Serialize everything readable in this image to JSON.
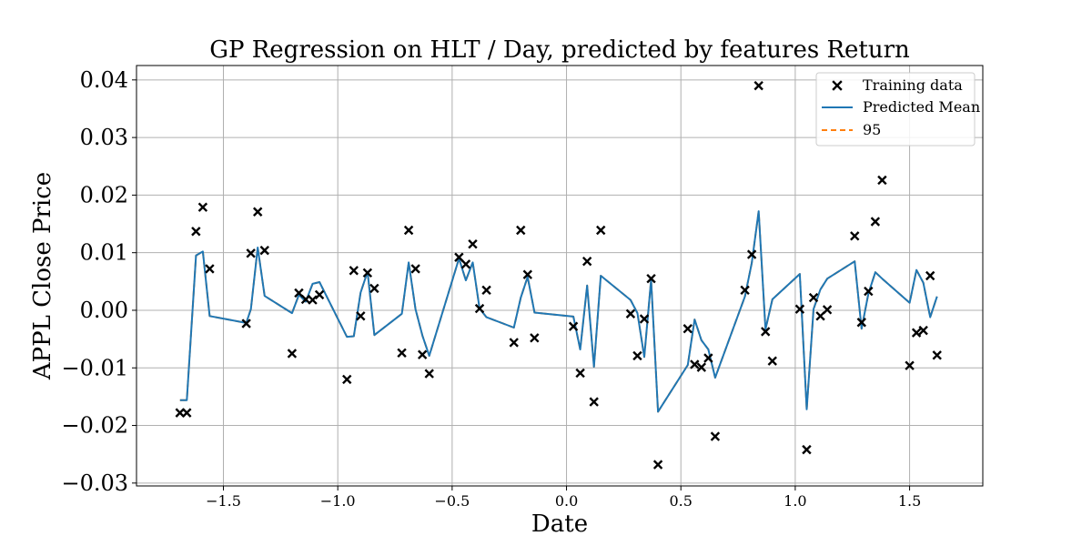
{
  "chart_data": {
    "type": "line",
    "title": "GP Regression on HLT / Day, predicted by features Return",
    "xlabel": "Date",
    "ylabel": "APPL Close Price",
    "xlim": [
      -1.88,
      1.82
    ],
    "ylim": [
      -0.0305,
      0.0425
    ],
    "xticks": [
      -1.5,
      -1.0,
      -0.5,
      0.0,
      0.5,
      1.0,
      1.5
    ],
    "xtick_labels": [
      "−1.5",
      "−1.0",
      "−0.5",
      "0.0",
      "0.5",
      "1.0",
      "1.5"
    ],
    "yticks": [
      -0.03,
      -0.02,
      -0.01,
      0.0,
      0.01,
      0.02,
      0.03,
      0.04
    ],
    "ytick_labels": [
      "−0.03",
      "−0.02",
      "−0.01",
      "0.00",
      "0.01",
      "0.02",
      "0.03",
      "0.04"
    ],
    "grid": true,
    "legend_position": "top-right",
    "colors": {
      "training": "#000000",
      "mean": "#1f77b4",
      "ci": "#ff7f0e",
      "grid": "#b0b0b0",
      "legend_border": "#cccccc"
    },
    "series": [
      {
        "name": "Training data",
        "kind": "scatter",
        "marker": "x",
        "points": [
          [
            -1.69,
            -0.0178
          ],
          [
            -1.66,
            -0.0178
          ],
          [
            -1.62,
            0.0137
          ],
          [
            -1.59,
            0.0179
          ],
          [
            -1.56,
            0.0072
          ],
          [
            -1.4,
            -0.0023
          ],
          [
            -1.38,
            0.0099
          ],
          [
            -1.35,
            0.0171
          ],
          [
            -1.32,
            0.0104
          ],
          [
            -1.2,
            -0.0075
          ],
          [
            -1.17,
            0.003
          ],
          [
            -1.14,
            0.0019
          ],
          [
            -1.11,
            0.0018
          ],
          [
            -1.08,
            0.0027
          ],
          [
            -0.96,
            -0.012
          ],
          [
            -0.93,
            0.0069
          ],
          [
            -0.9,
            -0.001
          ],
          [
            -0.87,
            0.0065
          ],
          [
            -0.84,
            0.0038
          ],
          [
            -0.72,
            -0.0074
          ],
          [
            -0.69,
            0.0139
          ],
          [
            -0.66,
            0.0072
          ],
          [
            -0.63,
            -0.0077
          ],
          [
            -0.6,
            -0.011
          ],
          [
            -0.47,
            0.0092
          ],
          [
            -0.44,
            0.008
          ],
          [
            -0.41,
            0.0115
          ],
          [
            -0.38,
            0.0003
          ],
          [
            -0.35,
            0.0035
          ],
          [
            -0.23,
            -0.0056
          ],
          [
            -0.2,
            0.0139
          ],
          [
            -0.17,
            0.0062
          ],
          [
            -0.14,
            -0.0048
          ],
          [
            0.03,
            -0.0028
          ],
          [
            0.06,
            -0.0109
          ],
          [
            0.09,
            0.0085
          ],
          [
            0.12,
            -0.0159
          ],
          [
            0.15,
            0.0139
          ],
          [
            0.28,
            -0.0006
          ],
          [
            0.31,
            -0.0079
          ],
          [
            0.34,
            -0.0015
          ],
          [
            0.37,
            0.0055
          ],
          [
            0.4,
            -0.0268
          ],
          [
            0.53,
            -0.0032
          ],
          [
            0.56,
            -0.0094
          ],
          [
            0.59,
            -0.0099
          ],
          [
            0.62,
            -0.0083
          ],
          [
            0.65,
            -0.0219
          ],
          [
            0.78,
            0.0035
          ],
          [
            0.81,
            0.0097
          ],
          [
            0.84,
            0.039
          ],
          [
            0.87,
            -0.0037
          ],
          [
            0.9,
            -0.0088
          ],
          [
            1.02,
            0.0002
          ],
          [
            1.05,
            -0.0242
          ],
          [
            1.08,
            0.0022
          ],
          [
            1.11,
            -0.001
          ],
          [
            1.14,
            0.0001
          ],
          [
            1.26,
            0.0129
          ],
          [
            1.29,
            -0.0021
          ],
          [
            1.32,
            0.0033
          ],
          [
            1.35,
            0.0154
          ],
          [
            1.38,
            0.0226
          ],
          [
            1.5,
            -0.0096
          ],
          [
            1.53,
            -0.0039
          ],
          [
            1.56,
            -0.0035
          ],
          [
            1.59,
            0.006
          ],
          [
            1.62,
            -0.0078
          ]
        ]
      },
      {
        "name": "Predicted Mean",
        "kind": "line",
        "points": [
          [
            -1.69,
            -0.0156
          ],
          [
            -1.66,
            -0.0156
          ],
          [
            -1.62,
            0.0095
          ],
          [
            -1.59,
            0.0102
          ],
          [
            -1.56,
            -0.001
          ],
          [
            -1.4,
            -0.0022
          ],
          [
            -1.38,
            0.0002
          ],
          [
            -1.35,
            0.0109
          ],
          [
            -1.32,
            0.0025
          ],
          [
            -1.2,
            -0.0005
          ],
          [
            -1.17,
            0.0027
          ],
          [
            -1.14,
            0.0015
          ],
          [
            -1.11,
            0.0046
          ],
          [
            -1.08,
            0.0049
          ],
          [
            -0.96,
            -0.0046
          ],
          [
            -0.93,
            -0.0045
          ],
          [
            -0.9,
            0.0031
          ],
          [
            -0.87,
            0.0067
          ],
          [
            -0.84,
            -0.0043
          ],
          [
            -0.72,
            -0.0006
          ],
          [
            -0.69,
            0.0083
          ],
          [
            -0.66,
            0.0002
          ],
          [
            -0.63,
            -0.0044
          ],
          [
            -0.6,
            -0.0079
          ],
          [
            -0.47,
            0.009
          ],
          [
            -0.44,
            0.0052
          ],
          [
            -0.41,
            0.0083
          ],
          [
            -0.38,
            0.0003
          ],
          [
            -0.35,
            -0.0012
          ],
          [
            -0.23,
            -0.003
          ],
          [
            -0.2,
            0.0022
          ],
          [
            -0.17,
            0.0058
          ],
          [
            -0.14,
            -0.0004
          ],
          [
            0.03,
            -0.0011
          ],
          [
            0.06,
            -0.0068
          ],
          [
            0.09,
            0.0043
          ],
          [
            0.12,
            -0.0098
          ],
          [
            0.15,
            0.006
          ],
          [
            0.28,
            0.0018
          ],
          [
            0.31,
            -0.0005
          ],
          [
            0.34,
            -0.0081
          ],
          [
            0.37,
            0.0053
          ],
          [
            0.4,
            -0.0176
          ],
          [
            0.53,
            -0.0095
          ],
          [
            0.56,
            -0.0016
          ],
          [
            0.59,
            -0.0052
          ],
          [
            0.62,
            -0.0068
          ],
          [
            0.65,
            -0.0117
          ],
          [
            0.78,
            0.0024
          ],
          [
            0.81,
            0.0082
          ],
          [
            0.84,
            0.0172
          ],
          [
            0.87,
            -0.0033
          ],
          [
            0.9,
            0.0019
          ],
          [
            1.02,
            0.0063
          ],
          [
            1.05,
            -0.0172
          ],
          [
            1.08,
            0.0002
          ],
          [
            1.11,
            0.0036
          ],
          [
            1.14,
            0.0055
          ],
          [
            1.26,
            0.0085
          ],
          [
            1.29,
            -0.0032
          ],
          [
            1.32,
            0.0029
          ],
          [
            1.35,
            0.0066
          ],
          [
            1.38,
            0.0055
          ],
          [
            1.5,
            0.0013
          ],
          [
            1.53,
            0.007
          ],
          [
            1.56,
            0.0048
          ],
          [
            1.59,
            -0.0012
          ],
          [
            1.62,
            0.0024
          ]
        ]
      },
      {
        "name": "95",
        "kind": "line",
        "dash": true,
        "points": [
          [
            -1.69,
            -0.0156
          ],
          [
            -1.66,
            -0.0156
          ],
          [
            -1.62,
            0.0095
          ],
          [
            -1.59,
            0.0102
          ],
          [
            -1.56,
            -0.001
          ],
          [
            -1.4,
            -0.0022
          ],
          [
            -1.38,
            0.0002
          ],
          [
            -1.35,
            0.0109
          ],
          [
            -1.32,
            0.0025
          ],
          [
            -1.2,
            -0.0005
          ],
          [
            -1.17,
            0.0027
          ],
          [
            -1.14,
            0.0015
          ],
          [
            -1.11,
            0.0046
          ],
          [
            -1.08,
            0.0049
          ],
          [
            -0.96,
            -0.0046
          ],
          [
            -0.93,
            -0.0045
          ],
          [
            -0.9,
            0.0031
          ],
          [
            -0.87,
            0.0067
          ],
          [
            -0.84,
            -0.0043
          ],
          [
            -0.72,
            -0.0006
          ],
          [
            -0.69,
            0.0083
          ],
          [
            -0.66,
            0.0002
          ],
          [
            -0.63,
            -0.0044
          ],
          [
            -0.6,
            -0.0079
          ],
          [
            -0.47,
            0.009
          ],
          [
            -0.44,
            0.0052
          ],
          [
            -0.41,
            0.0083
          ],
          [
            -0.38,
            0.0003
          ],
          [
            -0.35,
            -0.0012
          ],
          [
            -0.23,
            -0.003
          ],
          [
            -0.2,
            0.0022
          ],
          [
            -0.17,
            0.0058
          ],
          [
            -0.14,
            -0.0004
          ],
          [
            0.03,
            -0.0011
          ],
          [
            0.06,
            -0.0068
          ],
          [
            0.09,
            0.0043
          ],
          [
            0.12,
            -0.0098
          ],
          [
            0.15,
            0.006
          ],
          [
            0.28,
            0.0018
          ],
          [
            0.31,
            -0.0005
          ],
          [
            0.34,
            -0.0081
          ],
          [
            0.37,
            0.0053
          ],
          [
            0.4,
            -0.0176
          ],
          [
            0.53,
            -0.0095
          ],
          [
            0.56,
            -0.0016
          ],
          [
            0.59,
            -0.0052
          ],
          [
            0.62,
            -0.0068
          ],
          [
            0.65,
            -0.0117
          ],
          [
            0.78,
            0.0024
          ],
          [
            0.81,
            0.0082
          ],
          [
            0.84,
            0.0172
          ],
          [
            0.87,
            -0.0033
          ],
          [
            0.9,
            0.0019
          ],
          [
            1.02,
            0.0063
          ],
          [
            1.05,
            -0.0172
          ],
          [
            1.08,
            0.0002
          ],
          [
            1.11,
            0.0036
          ],
          [
            1.14,
            0.0055
          ],
          [
            1.26,
            0.0085
          ],
          [
            1.29,
            -0.0032
          ],
          [
            1.32,
            0.0029
          ],
          [
            1.35,
            0.0066
          ],
          [
            1.38,
            0.0055
          ],
          [
            1.5,
            0.0013
          ],
          [
            1.53,
            0.007
          ],
          [
            1.56,
            0.0048
          ],
          [
            1.59,
            -0.0012
          ],
          [
            1.62,
            0.0024
          ]
        ]
      }
    ]
  }
}
